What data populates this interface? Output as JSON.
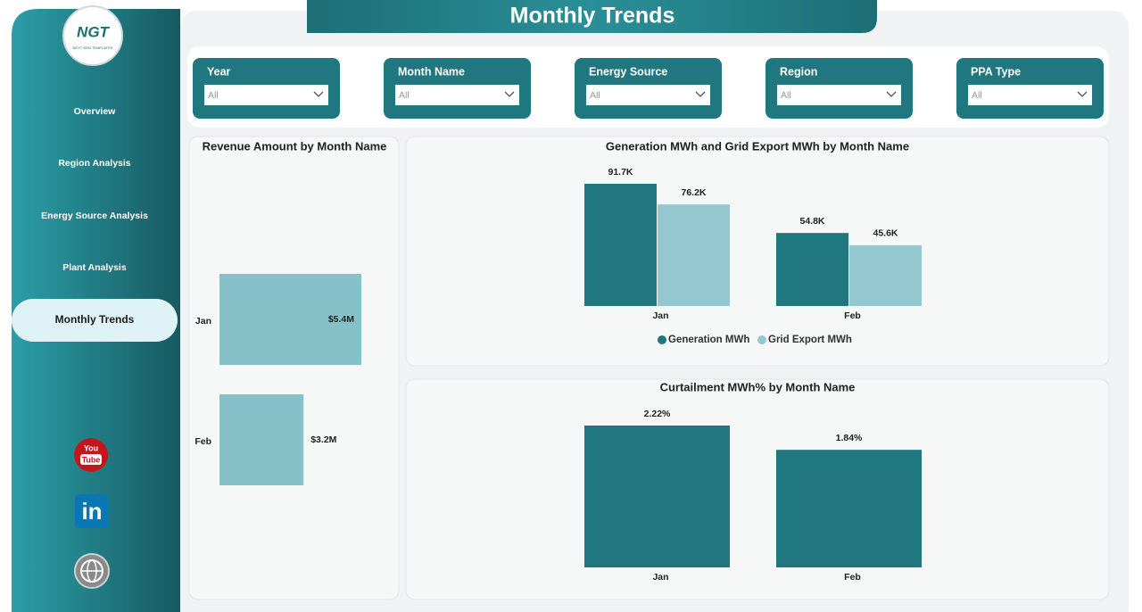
{
  "header": {
    "title": "Monthly Trends"
  },
  "logo": {
    "text": "NGT",
    "subtitle": "NEXT GEN TEMPLATES"
  },
  "nav": [
    "Overview",
    "Region Analysis",
    "Energy Source Analysis",
    "Plant Analysis",
    "Monthly Trends"
  ],
  "social": [
    "You",
    "Tube",
    "in"
  ],
  "filters": [
    {
      "label": "Year",
      "value": "All"
    },
    {
      "label": "Month Name",
      "value": "All"
    },
    {
      "label": "Energy Source",
      "value": "All"
    },
    {
      "label": "Region",
      "value": "All"
    },
    {
      "label": "PPA Type",
      "value": "All"
    }
  ],
  "chart_data": [
    {
      "type": "hbar",
      "title": "Revenue Amount by Month Name",
      "categories": [
        "Jan",
        "Feb"
      ],
      "values": [
        5.4,
        3.2
      ],
      "value_labels": [
        "$5.4M",
        "$3.2M"
      ],
      "color": "#86c0c8"
    },
    {
      "type": "bar",
      "title": "Generation MWh and Grid Export MWh by Month Name",
      "categories": [
        "Jan",
        "Feb"
      ],
      "series": [
        {
          "name": "Generation MWh",
          "color": "#21777f",
          "values": [
            91.7,
            54.8
          ],
          "value_labels": [
            "91.7K",
            "54.8K"
          ]
        },
        {
          "name": "Grid Export MWh",
          "color": "#95c7d1",
          "values": [
            76.2,
            45.6
          ],
          "value_labels": [
            "76.2K",
            "45.6K"
          ]
        }
      ]
    },
    {
      "type": "bar",
      "title": "Curtailment MWh% by Month Name",
      "categories": [
        "Jan",
        "Feb"
      ],
      "values": [
        2.22,
        1.84
      ],
      "value_labels": [
        "2.22%",
        "1.84%"
      ],
      "color": "#21777f"
    }
  ]
}
